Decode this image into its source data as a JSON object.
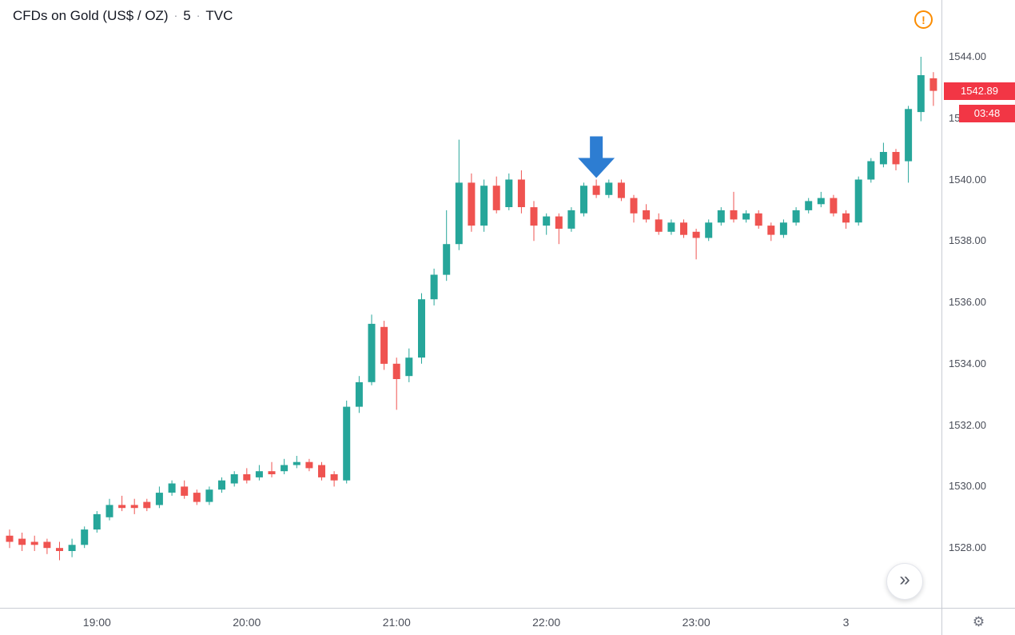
{
  "legend": {
    "symbol": "CFDs on Gold (US$ / OZ)",
    "separator": "·",
    "interval": "5",
    "exchange": "TVC"
  },
  "alert": {
    "glyph": "!",
    "color": "#fb8c00"
  },
  "scroll_button": {
    "glyph": "»"
  },
  "gear": {
    "glyph": "⚙"
  },
  "chart_data": {
    "type": "candlestick",
    "title": "CFDs on Gold (US$ / OZ) · 5 · TVC",
    "symbol": "CFDs on Gold (US$ / OZ)",
    "interval_minutes": 5,
    "exchange": "TVC",
    "up_color": "#26a69a",
    "down_color": "#ef5350",
    "grid": false,
    "visible_price_range": [
      1526.0,
      1545.9
    ],
    "price_tick_labels": [
      "1544.00",
      "1542.00",
      "1540.00",
      "1538.00",
      "1536.00",
      "1534.00",
      "1532.00",
      "1530.00",
      "1528.00"
    ],
    "time_labels": [
      {
        "text": "19:00",
        "index": 7
      },
      {
        "text": "20:00",
        "index": 19
      },
      {
        "text": "21:00",
        "index": 31
      },
      {
        "text": "22:00",
        "index": 43
      },
      {
        "text": "23:00",
        "index": 55
      },
      {
        "text": "3",
        "index": 67
      }
    ],
    "last_price": 1542.89,
    "last_price_color": "#f23645",
    "bar_countdown": "03:48",
    "annotation": {
      "type": "arrow-down",
      "color": "#2d7dd2",
      "time": "22:20",
      "tip_price": 1540.0
    },
    "columns": [
      "time",
      "open",
      "high",
      "low",
      "close"
    ],
    "candles": [
      [
        "18:25",
        1528.4,
        1528.6,
        1528.0,
        1528.2
      ],
      [
        "18:30",
        1528.3,
        1528.5,
        1527.9,
        1528.1
      ],
      [
        "18:35",
        1528.2,
        1528.4,
        1527.9,
        1528.1
      ],
      [
        "18:40",
        1528.2,
        1528.3,
        1527.8,
        1528.0
      ],
      [
        "18:45",
        1528.0,
        1528.2,
        1527.6,
        1527.9
      ],
      [
        "18:50",
        1527.9,
        1528.3,
        1527.7,
        1528.1
      ],
      [
        "18:55",
        1528.1,
        1528.7,
        1528.0,
        1528.6
      ],
      [
        "19:00",
        1528.6,
        1529.2,
        1528.5,
        1529.1
      ],
      [
        "19:05",
        1529.0,
        1529.6,
        1528.9,
        1529.4
      ],
      [
        "19:10",
        1529.4,
        1529.7,
        1529.2,
        1529.3
      ],
      [
        "19:15",
        1529.4,
        1529.6,
        1529.1,
        1529.3
      ],
      [
        "19:20",
        1529.5,
        1529.6,
        1529.2,
        1529.3
      ],
      [
        "19:25",
        1529.4,
        1530.0,
        1529.3,
        1529.8
      ],
      [
        "19:30",
        1529.8,
        1530.2,
        1529.7,
        1530.1
      ],
      [
        "19:35",
        1530.0,
        1530.2,
        1529.6,
        1529.7
      ],
      [
        "19:40",
        1529.8,
        1529.9,
        1529.4,
        1529.5
      ],
      [
        "19:45",
        1529.5,
        1530.0,
        1529.4,
        1529.9
      ],
      [
        "19:50",
        1529.9,
        1530.3,
        1529.8,
        1530.2
      ],
      [
        "19:55",
        1530.1,
        1530.5,
        1530.0,
        1530.4
      ],
      [
        "20:00",
        1530.4,
        1530.6,
        1530.1,
        1530.2
      ],
      [
        "20:05",
        1530.3,
        1530.7,
        1530.2,
        1530.5
      ],
      [
        "20:10",
        1530.5,
        1530.8,
        1530.3,
        1530.4
      ],
      [
        "20:15",
        1530.5,
        1530.9,
        1530.4,
        1530.7
      ],
      [
        "20:20",
        1530.7,
        1531.0,
        1530.6,
        1530.8
      ],
      [
        "20:25",
        1530.8,
        1530.9,
        1530.5,
        1530.6
      ],
      [
        "20:30",
        1530.7,
        1530.8,
        1530.2,
        1530.3
      ],
      [
        "20:35",
        1530.4,
        1530.5,
        1530.0,
        1530.2
      ],
      [
        "20:40",
        1530.2,
        1532.8,
        1530.1,
        1532.6
      ],
      [
        "20:45",
        1532.6,
        1533.6,
        1532.4,
        1533.4
      ],
      [
        "20:50",
        1533.4,
        1535.6,
        1533.3,
        1535.3
      ],
      [
        "20:55",
        1535.2,
        1535.4,
        1533.8,
        1534.0
      ],
      [
        "21:00",
        1534.0,
        1534.2,
        1532.5,
        1533.5
      ],
      [
        "21:05",
        1533.6,
        1534.5,
        1533.4,
        1534.2
      ],
      [
        "21:10",
        1534.2,
        1536.3,
        1534.0,
        1536.1
      ],
      [
        "21:15",
        1536.1,
        1537.1,
        1535.9,
        1536.9
      ],
      [
        "21:20",
        1536.9,
        1539.0,
        1536.7,
        1537.9
      ],
      [
        "21:25",
        1537.9,
        1541.3,
        1537.7,
        1539.9
      ],
      [
        "21:30",
        1539.9,
        1540.2,
        1538.3,
        1538.5
      ],
      [
        "21:35",
        1538.5,
        1540.0,
        1538.3,
        1539.8
      ],
      [
        "21:40",
        1539.8,
        1540.1,
        1538.9,
        1539.0
      ],
      [
        "21:45",
        1539.1,
        1540.2,
        1539.0,
        1540.0
      ],
      [
        "21:50",
        1540.0,
        1540.3,
        1538.9,
        1539.1
      ],
      [
        "21:55",
        1539.1,
        1539.3,
        1538.0,
        1538.5
      ],
      [
        "22:00",
        1538.5,
        1538.9,
        1538.2,
        1538.8
      ],
      [
        "22:05",
        1538.8,
        1538.9,
        1537.9,
        1538.4
      ],
      [
        "22:10",
        1538.4,
        1539.1,
        1538.3,
        1539.0
      ],
      [
        "22:15",
        1538.9,
        1539.9,
        1538.8,
        1539.8
      ],
      [
        "22:20",
        1539.8,
        1540.0,
        1539.4,
        1539.5
      ],
      [
        "22:25",
        1539.5,
        1540.0,
        1539.4,
        1539.9
      ],
      [
        "22:30",
        1539.9,
        1540.0,
        1539.3,
        1539.4
      ],
      [
        "22:35",
        1539.4,
        1539.5,
        1538.6,
        1538.9
      ],
      [
        "22:40",
        1539.0,
        1539.2,
        1538.6,
        1538.7
      ],
      [
        "22:45",
        1538.7,
        1538.9,
        1538.2,
        1538.3
      ],
      [
        "22:50",
        1538.3,
        1538.7,
        1538.2,
        1538.6
      ],
      [
        "22:55",
        1538.6,
        1538.7,
        1538.1,
        1538.2
      ],
      [
        "23:00",
        1538.3,
        1538.4,
        1537.4,
        1538.1
      ],
      [
        "23:05",
        1538.1,
        1538.7,
        1538.0,
        1538.6
      ],
      [
        "23:10",
        1538.6,
        1539.1,
        1538.5,
        1539.0
      ],
      [
        "23:15",
        1539.0,
        1539.6,
        1538.6,
        1538.7
      ],
      [
        "23:20",
        1538.7,
        1539.0,
        1538.6,
        1538.9
      ],
      [
        "23:25",
        1538.9,
        1539.0,
        1538.4,
        1538.5
      ],
      [
        "23:30",
        1538.5,
        1538.6,
        1538.0,
        1538.2
      ],
      [
        "23:35",
        1538.2,
        1538.7,
        1538.1,
        1538.6
      ],
      [
        "23:40",
        1538.6,
        1539.1,
        1538.5,
        1539.0
      ],
      [
        "23:45",
        1539.0,
        1539.4,
        1538.9,
        1539.3
      ],
      [
        "23:50",
        1539.2,
        1539.6,
        1539.1,
        1539.4
      ],
      [
        "23:55",
        1539.4,
        1539.5,
        1538.8,
        1538.9
      ],
      [
        "00:00",
        1538.9,
        1539.0,
        1538.4,
        1538.6
      ],
      [
        "00:05",
        1538.6,
        1540.1,
        1538.5,
        1540.0
      ],
      [
        "00:10",
        1540.0,
        1540.7,
        1539.9,
        1540.6
      ],
      [
        "00:15",
        1540.5,
        1541.2,
        1540.4,
        1540.9
      ],
      [
        "00:20",
        1540.9,
        1541.0,
        1540.3,
        1540.5
      ],
      [
        "00:25",
        1540.6,
        1542.4,
        1539.9,
        1542.3
      ],
      [
        "00:30",
        1542.2,
        1544.0,
        1541.9,
        1543.4
      ],
      [
        "00:35",
        1543.3,
        1543.5,
        1542.4,
        1542.89
      ]
    ]
  }
}
